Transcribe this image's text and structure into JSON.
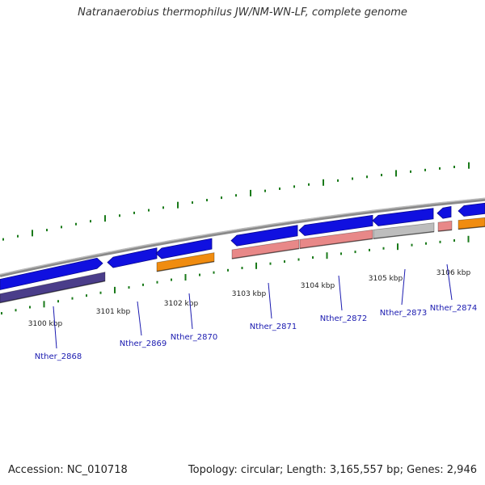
{
  "title": "Natranaerobius thermophilus JW/NM-WN-LF, complete genome",
  "footer": {
    "accession": "Accession: NC_010718",
    "topology": "Topology: circular; Length: 3,165,557 bp; Genes: 2,946"
  },
  "colors": {
    "forward_gene": "#1010e0",
    "reverse_gene": "#1010e0",
    "backbone": "#8a8a8a",
    "tick": "#1a7a1a",
    "label": "#1a1ab0",
    "cds_purple": "#4a3d8a",
    "cds_orange": "#f08c10",
    "cds_pink": "#e88888",
    "cds_gray": "#bdbdbd"
  },
  "kbp_labels": [
    "3100 kbp",
    "3101 kbp",
    "3102 kbp",
    "3103 kbp",
    "3104 kbp",
    "3105 kbp",
    "3106 kbp"
  ],
  "genes": [
    {
      "locus": "Nther_2868"
    },
    {
      "locus": "Nther_2869"
    },
    {
      "locus": "Nther_2870"
    },
    {
      "locus": "Nther_2871"
    },
    {
      "locus": "Nther_2872"
    },
    {
      "locus": "Nther_2873"
    },
    {
      "locus": "Nther_2874"
    }
  ]
}
